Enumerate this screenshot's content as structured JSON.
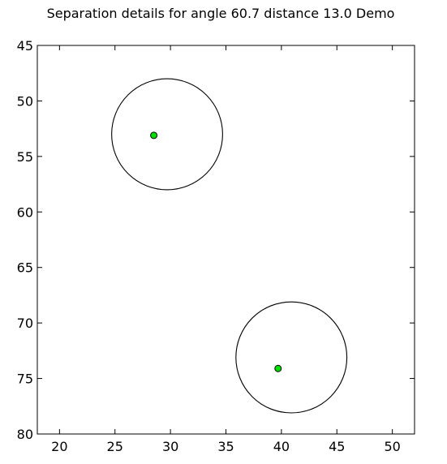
{
  "chart_data": {
    "type": "scatter",
    "title": "Separation details for angle 60.7 distance 13.0 Demo",
    "xlabel": "",
    "ylabel": "",
    "xlim": [
      18,
      52
    ],
    "ylim": [
      80,
      45
    ],
    "y_inverted": true,
    "grid": false,
    "x_ticks": [
      20,
      25,
      30,
      35,
      40,
      45,
      50
    ],
    "y_ticks": [
      45,
      50,
      55,
      60,
      65,
      70,
      75,
      80
    ],
    "points": [
      {
        "x": 28.5,
        "y": 53.1,
        "color": "#00e000"
      },
      {
        "x": 39.7,
        "y": 74.1,
        "color": "#00e000"
      }
    ],
    "circles": [
      {
        "cx": 29.7,
        "cy": 53.0,
        "r": 5.0
      },
      {
        "cx": 40.9,
        "cy": 73.1,
        "r": 5.0
      }
    ]
  },
  "colors": {
    "point_fill": "#00e000",
    "point_edge": "#000000",
    "circle_stroke": "#000000",
    "axes": "#000000"
  }
}
